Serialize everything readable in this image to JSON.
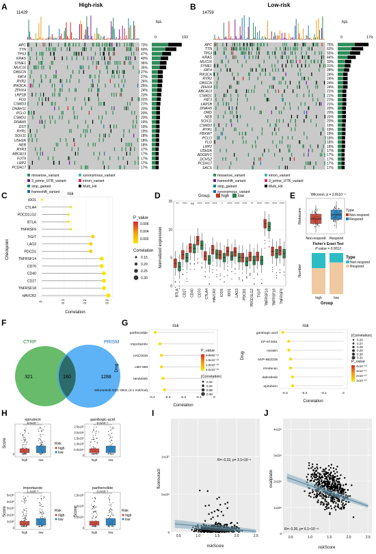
{
  "panels": {
    "A": {
      "letter": "A",
      "title": "High-risk",
      "top_max": "11429",
      "na": "NA",
      "right_ticks": [
        "0",
        "192"
      ],
      "genes": [
        "APC",
        "TTN",
        "TP53",
        "KRAS",
        "SYNE1",
        "MUC16",
        "OBSCN",
        "FAT4",
        "RYR2",
        "PIK3CA",
        "ZFHX4",
        "LRP1B",
        "FLG",
        "CSMD3",
        "DNAH11",
        "PCLO",
        "CSMD1",
        "DNAH5",
        "DST",
        "RYR1",
        "SOX11",
        "USH2A",
        "NEB",
        "RYR3",
        "ABCA13",
        "FUT9",
        "LRP2",
        "PCDH17"
      ],
      "pcts": [
        "73%",
        "60%",
        "47%",
        "40%",
        "36%",
        "35%",
        "27%",
        "27%",
        "26%",
        "25%",
        "24%",
        "23%",
        "22%",
        "21%",
        "20%",
        "20%",
        "20%",
        "19%",
        "19%",
        "19%",
        "18%",
        "18%",
        "18%",
        "17%",
        "17%",
        "17%",
        "17%",
        "17%"
      ],
      "legend": [
        "missense_variant",
        "synonymous_variant",
        "3_prime_UTR_variant",
        "intron_variant",
        "stop_gained",
        "Multi_Hit",
        "frameshift_variant"
      ]
    },
    "B": {
      "letter": "B",
      "title": "Low-risk",
      "top_max": "14759",
      "na": "NA",
      "right_ticks": [
        "0",
        "179"
      ],
      "genes": [
        "APC",
        "TTN",
        "TP53",
        "KRAS",
        "MUC16",
        "SYNE1",
        "FAT4",
        "PIK3CA",
        "RYR2",
        "OBSCN",
        "ZFHX4",
        "ABCA13",
        "CSMD1",
        "FAT3",
        "LRP1B",
        "DNAH5",
        "DMD",
        "NEB",
        "SOX11",
        "CSMD3",
        "RYR1",
        "FBXW7",
        "PCLO",
        "FLG",
        "LRP2",
        "USH2A",
        "ADGRV1",
        "DCHS2",
        "PCDH17",
        "SACS"
      ],
      "pcts": [
        "75%",
        "62%",
        "55%",
        "44%",
        "33%",
        "31%",
        "28%",
        "24%",
        "24%",
        "24%",
        "24%",
        "21%",
        "21%",
        "21%",
        "21%",
        "20%",
        "20%",
        "20%",
        "20%",
        "19%",
        "19%",
        "19%",
        "18%",
        "18%",
        "18%",
        "17%",
        "17%",
        "17%",
        "17%",
        "17%"
      ],
      "legend": [
        "missense_variant",
        "intron_variant",
        "frameshift_variant",
        "3_prime_UTR_variant",
        "stop_gained",
        "Multi_Hit",
        "synonymous_variant"
      ]
    },
    "C": {
      "letter": "C",
      "title": "risk",
      "ylabel": "Checkpoint",
      "xlabel": "Correlation",
      "legend_p_title": "P_value",
      "legend_p": [
        "0.006",
        "0.004",
        "0.002"
      ],
      "legend_c_title": "Correlation",
      "legend_c": [
        "0.15",
        "0.20",
        "0.25",
        "0.30"
      ]
    },
    "D": {
      "letter": "D",
      "legend_title": "Group",
      "legend_items": [
        "high",
        "low"
      ],
      "ylabel": "Normalized expression"
    },
    "E": {
      "letter": "E",
      "title1": "Wilcoxon, p = 2.8x10⁻⁴",
      "ylabel1": "Riskscore",
      "legend1_title": "Type",
      "legend1_items": [
        "Non-respond",
        "Respond"
      ],
      "xcats1": [
        "Non-respond",
        "Respond"
      ],
      "title2": "Fisher's Exact Test",
      "subtitle2": "P value = 0.0012",
      "ylabel2": "Number",
      "xlabel2": "Group",
      "legend2_title": "Type",
      "legend2_items": [
        "Non-respond",
        "Respond"
      ]
    },
    "F": {
      "letter": "F",
      "left": "CTRP",
      "right": "PRISM",
      "left_only": "321",
      "both": "160",
      "right_only": "1288"
    },
    "G": {
      "letter": "G",
      "title": "risk",
      "ylabel": "Drug",
      "xlabel": "Correlation",
      "left_p_title": "P_value",
      "left_p": [
        "2.0x10⁻¹⁴",
        "1.5x10⁻¹⁴",
        "1.0x10⁻¹⁴",
        "5.0x10⁻¹⁵"
      ],
      "left_c_title": "|Correlation|",
      "left_c": [
        "0.32",
        "0.34",
        "0.36",
        "0.38"
      ],
      "right_c_title": "|Correlation|",
      "right_c": [
        "0.26",
        "0.27",
        "0.28",
        "0.29",
        "0.30",
        "0.31"
      ],
      "right_p_title": "P_value",
      "right_p": [
        "4x10⁻¹⁰",
        "3x10⁻¹⁰",
        "2x10⁻¹⁰",
        "1x10⁻¹⁰"
      ]
    },
    "H": {
      "letter": "H",
      "ylabel": "Score",
      "legend_title": "Risk",
      "legend_items": [
        "high",
        "low"
      ],
      "subplots": [
        {
          "title": "epirubicin",
          "p": "8.5x10⁻⁷",
          "yt": [
            "0"
          ],
          "x": [
            "high",
            "low"
          ]
        },
        {
          "title": "gambogic-acid",
          "p": "9.2x10⁻⁶",
          "yt": [
            "2.5x10⁵",
            "2.0x10⁵",
            "1.5x10⁵",
            "1.0x10⁵",
            "5.0x10⁴",
            "0"
          ],
          "x": [
            "high",
            "low"
          ]
        },
        {
          "title": "importazole",
          "p": "1.1x10⁻⁵",
          "yt": [
            "5x10⁶",
            "4x10⁶",
            "3x10⁶",
            "2x10⁶",
            "1x10⁶",
            "0"
          ],
          "x": [
            "high",
            "low"
          ]
        },
        {
          "title": "parthenolide",
          "p": "3.1x10⁻⁵",
          "yt": [
            "1.5x10⁵",
            "1.0x10⁵",
            "5.0x10⁴",
            "0"
          ],
          "x": [
            "high",
            "low"
          ]
        }
      ]
    },
    "I": {
      "letter": "I",
      "ylabel": "fluorouracil",
      "xlabel": "riskScore",
      "stat": "R=−0.22, p= 3.1×10⁻⁸"
    },
    "J": {
      "letter": "J",
      "ylabel": "oxaliplatin",
      "xlabel": "riskScore",
      "stat": "R=−0.26, p= 6.1×10⁻¹¹"
    }
  },
  "colors": {
    "high": "#c0392b",
    "low": "#2e7d4f",
    "respond": "#f0c9a0",
    "nonrespond": "#2bbcc4",
    "ctrp": "#4caf50",
    "prism": "#42a5f5",
    "lollipop": "#f5e000"
  },
  "chart_data": [
    {
      "type": "bar",
      "panel": "C",
      "title": "risk",
      "categories": [
        "IDO1",
        "CTLA4",
        "PDCD1LG2",
        "BTLA",
        "TNFRSF9",
        "TIGIT",
        "LAG3",
        "PDCD1",
        "TNFRSF14",
        "CD70",
        "CD40",
        "CD27",
        "TNFRSF18",
        "HAVCR2"
      ],
      "values": [
        0.0,
        0.13,
        0.12,
        0.12,
        0.13,
        0.23,
        0.22,
        0.22,
        0.27,
        0.27,
        0.28,
        0.28,
        0.28,
        0.3
      ],
      "xlabel": "Correlation",
      "ylabel": "Checkpoint",
      "x_ticks": [
        "0",
        "0.1",
        "0.2",
        "0.3"
      ],
      "xlim": [
        -0.02,
        0.32
      ]
    },
    {
      "type": "box",
      "panel": "D",
      "categories": [
        "BTLA",
        "CD27",
        "CD40",
        "CD70",
        "CTLA4",
        "HAVCR2",
        "ICOS",
        "IDO1",
        "LAG3",
        "PDCD1",
        "PDCD1LG2",
        "TIGIT",
        "TNFRSF14",
        "TNFRSF18",
        "TNFRSF9"
      ],
      "sig": [
        "**",
        "****",
        "ns",
        "****",
        "****",
        "****",
        "*",
        "****",
        "****",
        "****",
        "**",
        "****",
        "****",
        "****",
        "****"
      ],
      "series": [
        {
          "name": "high",
          "median": [
            4.0,
            5.5,
            6.7,
            8.0,
            5.3,
            6.4,
            5.5,
            6.1,
            6.0,
            5.0,
            5.2,
            5.2,
            11.0,
            6.1,
            6.2
          ]
        },
        {
          "name": "low",
          "median": [
            3.4,
            5.0,
            6.6,
            7.2,
            4.6,
            5.6,
            5.0,
            5.3,
            5.0,
            4.3,
            4.5,
            4.5,
            10.5,
            5.7,
            5.7
          ]
        }
      ],
      "ylim": [
        0,
        15
      ],
      "y_ticks": [
        "0",
        "5",
        "10",
        "15"
      ],
      "ylabel": "Normalized expression"
    },
    {
      "type": "bar",
      "panel": "E2",
      "categories": [
        "high",
        "low"
      ],
      "series": [
        {
          "name": "Non-respond",
          "values": [
            37,
            23
          ]
        },
        {
          "name": "Respond",
          "values": [
            63,
            77
          ]
        }
      ],
      "ylabel": "Number",
      "xlabel": "Group"
    },
    {
      "type": "bar",
      "panel": "G-left",
      "categories": [
        "parthenolide",
        "importazole",
        "UNC0638",
        "LBH-589",
        "tandutinib",
        "selumetinib:GDC-0941 (4:1 mol/mol)"
      ],
      "values": [
        -0.38,
        -0.35,
        -0.34,
        -0.34,
        -0.33,
        -0.32
      ],
      "x_ticks": [
        "-0.4",
        "-0.3",
        "-0.2",
        "-0.1",
        "0"
      ],
      "xlabel": "Correlation",
      "xlim": [
        -0.42,
        0.02
      ]
    },
    {
      "type": "bar",
      "panel": "G-right",
      "categories": [
        "gambogic-acid",
        "CP-673451",
        "narasin",
        "NVP-BEZ235",
        "irinotecan",
        "dabrafenib",
        "epirubicin"
      ],
      "values": [
        -0.31,
        -0.28,
        -0.28,
        -0.27,
        -0.27,
        -0.26,
        -0.26
      ],
      "x_ticks": [
        "-0.3",
        "-0.2",
        "-0.1",
        "0"
      ],
      "xlabel": "Correlation",
      "xlim": [
        -0.33,
        0.02
      ]
    },
    {
      "type": "scatter",
      "panel": "I",
      "xlabel": "riskScore",
      "ylabel": "fluorouracil",
      "x_ticks": [
        "0.5",
        "1.0",
        "1.5",
        "2.0",
        "2.5"
      ],
      "y_ticks": [
        "0",
        "5x10⁶",
        "1x10⁷"
      ],
      "xlim": [
        0.3,
        2.6
      ],
      "ylim": [
        0,
        15000000.0
      ],
      "trend": [
        [
          0.4,
          1100000.0
        ],
        [
          2.5,
          100000.0
        ]
      ]
    },
    {
      "type": "scatter",
      "panel": "J",
      "xlabel": "riskScore",
      "ylabel": "oxaliplatin",
      "x_ticks": [
        "0.5",
        "1.0",
        "1.5",
        "2.0",
        "2.5"
      ],
      "y_ticks": [
        "0",
        "1x10⁶",
        "2x10⁶",
        "3x10⁶",
        "4x10⁶"
      ],
      "xlim": [
        0.3,
        2.6
      ],
      "ylim": [
        0,
        4400000.0
      ],
      "trend": [
        [
          0.4,
          2150000.0
        ],
        [
          2.5,
          1050000.0
        ]
      ]
    }
  ]
}
